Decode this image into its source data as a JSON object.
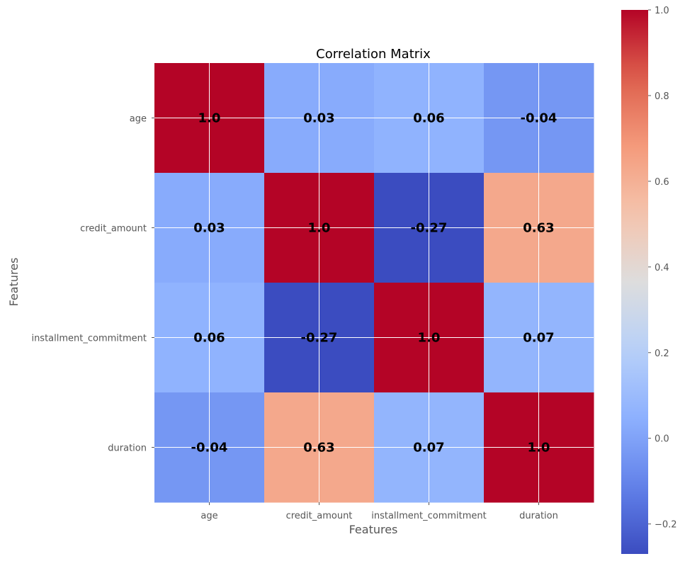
{
  "chart_data": {
    "type": "heatmap",
    "title": "Correlation Matrix",
    "xlabel": "Features",
    "ylabel": "Features",
    "x_categories": [
      "age",
      "credit_amount",
      "installment_commitment",
      "duration"
    ],
    "y_categories": [
      "age",
      "credit_amount",
      "installment_commitment",
      "duration"
    ],
    "values": [
      [
        1.0,
        0.03,
        0.06,
        -0.04
      ],
      [
        0.03,
        1.0,
        -0.27,
        0.63
      ],
      [
        0.06,
        -0.27,
        1.0,
        0.07
      ],
      [
        -0.04,
        0.63,
        0.07,
        1.0
      ]
    ],
    "cell_labels": [
      [
        "1.0",
        "0.03",
        "0.06",
        "-0.04"
      ],
      [
        "0.03",
        "1.0",
        "-0.27",
        "0.63"
      ],
      [
        "0.06",
        "-0.27",
        "1.0",
        "0.07"
      ],
      [
        "-0.04",
        "0.63",
        "0.07",
        "1.0"
      ]
    ],
    "colormap": "coolwarm",
    "colorbar": {
      "vmin": -0.27,
      "vmax": 1.0,
      "ticks": [
        -0.2,
        0.0,
        0.2,
        0.4,
        0.6,
        0.8,
        1.0
      ],
      "tick_labels": [
        "−0.2",
        "0.0",
        "0.2",
        "0.4",
        "0.6",
        "0.8",
        "1.0"
      ]
    },
    "grid": true
  },
  "colors": {
    "grid": "#ffffff",
    "tick_text": "#555555",
    "label_text": "#555555",
    "title_text": "#000000",
    "cell_text": "#000000"
  }
}
